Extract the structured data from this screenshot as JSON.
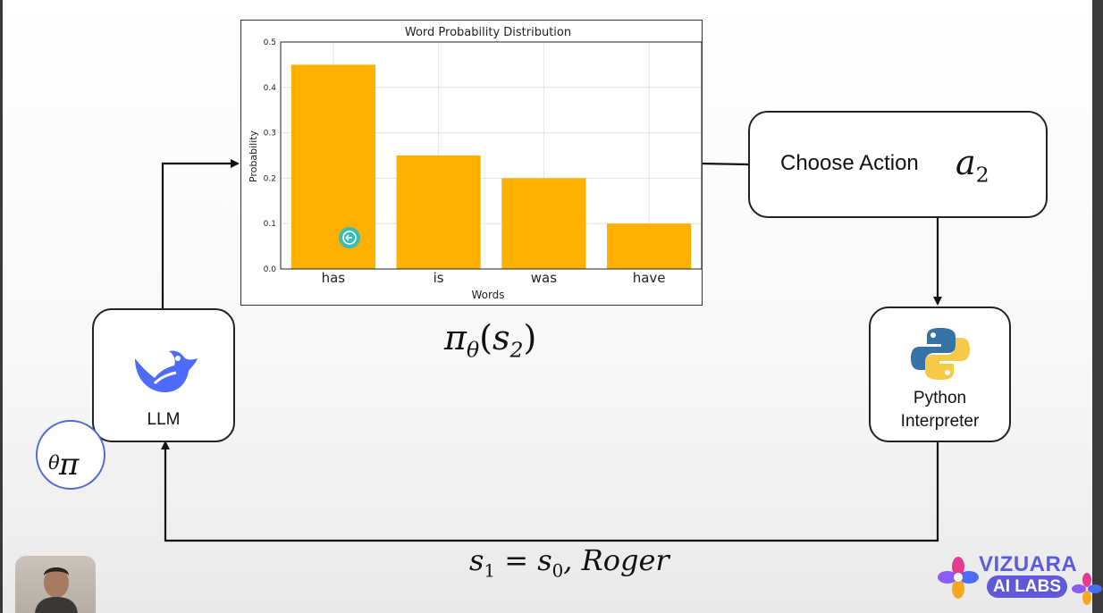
{
  "chart_data": {
    "type": "bar",
    "title": "Word Probability Distribution",
    "xlabel": "Words",
    "ylabel": "Probability",
    "categories": [
      "has",
      "is",
      "was",
      "have"
    ],
    "values": [
      0.45,
      0.25,
      0.2,
      0.1
    ],
    "ylim": [
      0,
      0.5
    ],
    "yticks": [
      "0.0",
      "0.1",
      "0.2",
      "0.3",
      "0.4",
      "0.5"
    ],
    "grid": true,
    "bar_color": "#FFB000"
  },
  "diagram": {
    "llm_label": "LLM",
    "action_label": "Choose Action",
    "action_symbol": "a",
    "action_subscript": "2",
    "python_label_line1": "Python",
    "python_label_line2": "Interpreter",
    "policy_symbol": "π",
    "policy_subscript": "θ",
    "policy_state": "s",
    "policy_state_subscript": "2",
    "transition_s1": "s",
    "transition_s1_subscript": "1",
    "transition_equals": " = ",
    "transition_s0": "s",
    "transition_s0_subscript": "0",
    "transition_rest": ", Roger"
  },
  "branding": {
    "name": "VIZUARA",
    "tagline": "AI LABS",
    "accent_color": "#5B5BE0"
  },
  "icons": [
    "deepseek-whale-icon",
    "python-logo-icon",
    "back-arrow-cursor-icon",
    "vizuara-flower-icon"
  ]
}
